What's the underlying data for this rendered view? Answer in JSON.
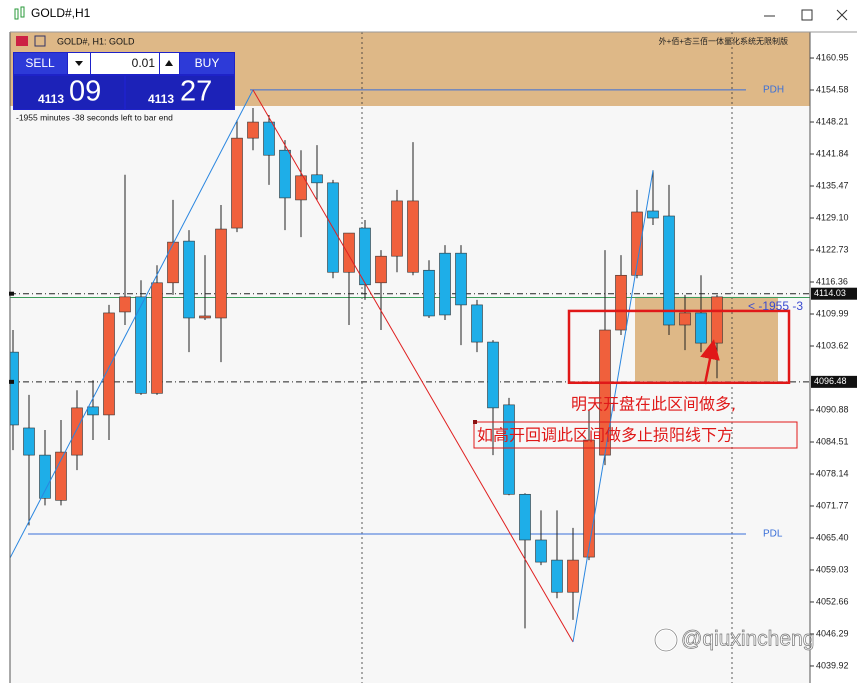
{
  "window": {
    "title": "GOLD#,H1"
  },
  "chart_header": {
    "symbol": "GOLD#, H1:  GOLD",
    "indicator": "外+佰+杏三佰一体量化系统无限制版"
  },
  "trade_panel": {
    "sell": "SELL",
    "buy": "BUY",
    "volume": "0.01",
    "bid_big": "4113",
    "bid_small": "09",
    "ask_big": "4113",
    "ask_small": "27"
  },
  "timer": "-1955 minutes -38 seconds left to bar end",
  "watermark": "@qiuxincheng",
  "chart_data": {
    "type": "candlestick",
    "ylim": [
      4036.53,
      4166.13
    ],
    "yticks": [
      4160.95,
      4154.58,
      4148.21,
      4141.84,
      4135.47,
      {
        "value": 4129.1,
        "label": "4129.10"
      },
      4122.73,
      4116.36,
      4109.99,
      4103.62,
      4090.88,
      4084.51,
      4078.14,
      4071.77,
      {
        "value": 4065.4,
        "label": "4065.40"
      },
      4059.03,
      4052.66,
      4046.29,
      4039.92
    ],
    "up_color": "#f0603c",
    "down_color": "#1eaee8",
    "open": [
      4102.4,
      4087.3,
      4081.9,
      4072.9,
      4081.9,
      4091.5,
      4089.9,
      4110.4,
      4113.4,
      4094.2,
      4116.2,
      4124.5,
      4109.2,
      4109.2,
      4127.1,
      4145,
      4148.2,
      4142.6,
      4132.7,
      4137.7,
      4136.1,
      4118.3,
      4127.1,
      4116.2,
      4121.5,
      4118.3,
      4118.7,
      4122.1,
      4122.1,
      4111.8,
      4104.4,
      4091.9,
      4074.1,
      4065,
      4061,
      4054.6,
      4061.6,
      4081.9,
      4106.8,
      4117.7,
      4130.5,
      4129.5,
      4107.8,
      4110.2,
      4104.2
    ],
    "high": [
      4106.8,
      4093.9,
      4086.9,
      4088.9,
      4094.8,
      4096.8,
      4111.8,
      4137.7,
      4116.7,
      4119.7,
      4132.7,
      4126.7,
      4121.7,
      4131.7,
      4148.6,
      4151,
      4149.6,
      4144.6,
      4142.6,
      4143.6,
      4136.7,
      4126.1,
      4128.7,
      4122.7,
      4134.7,
      4144.2,
      4120.7,
      4123.7,
      4123.7,
      4112.8,
      4104.8,
      4093.3,
      4074.3,
      4070.9,
      4070.9,
      4067.4,
      4090.9,
      4122.7,
      4121.7,
      4134.7,
      4138.6,
      4135.7,
      4113.8,
      4117.7,
      4113.8
    ],
    "low": [
      4082.9,
      4067.9,
      4071.9,
      4071.9,
      4078.9,
      4084.9,
      4084.9,
      4107.8,
      4093.9,
      4093.9,
      4113.8,
      4102.4,
      4108.8,
      4100.4,
      4126.3,
      4142.6,
      4135.7,
      4126.7,
      4125.3,
      4132.7,
      4117.1,
      4107.8,
      4112.8,
      4106.8,
      4118.3,
      4117.7,
      4109.2,
      4108.8,
      4103.8,
      4102.4,
      4081.9,
      4073.9,
      4047.4,
      4060,
      4053.4,
      4049.1,
      4061,
      4079.9,
      4105.8,
      4117.1,
      4127.7,
      4105.8,
      4102.8,
      4102.4,
      4097.2
    ],
    "close": [
      4087.9,
      4081.9,
      4073.3,
      4082.5,
      4091.3,
      4089.9,
      4110.2,
      4113.4,
      4094.2,
      4116.2,
      4124.3,
      4109.2,
      4109.6,
      4126.9,
      4145,
      4148.2,
      4141.6,
      4133.1,
      4137.5,
      4136.1,
      4118.3,
      4126.1,
      4115.8,
      4121.5,
      4132.5,
      4132.5,
      4109.6,
      4109.8,
      4111.8,
      4104.4,
      4091.3,
      4074.1,
      4065,
      4060.6,
      4054.6,
      4061,
      4084.9,
      4106.8,
      4117.7,
      4130.3,
      4129.1,
      4107.8,
      4110.2,
      4104.2,
      4113.4
    ],
    "zigzag": {
      "x": [
        0,
        15,
        35,
        40
      ],
      "values": [
        4061.4,
        4154.6,
        4044.7,
        4138.6
      ],
      "up_color": "#2a86e0",
      "down_color": "#e02020"
    },
    "levels": [
      {
        "name": "PDH",
        "value": 4154.6,
        "color": "#3a6fd8"
      },
      {
        "name": "PDL",
        "value": 4066.2,
        "color": "#3a6fd8"
      }
    ],
    "ask_line": {
      "value": 4113.27,
      "color": "#3c9a5a"
    },
    "price_labels": [
      4114.03,
      4096.48
    ],
    "band": {
      "bottom": 4151.4,
      "color": "#deb887"
    },
    "zone": {
      "top": 4113.4,
      "bottom": 4096.6,
      "color": "#deb887"
    },
    "box": {
      "top": 4110.6,
      "bottom": 4096.3,
      "color": "#e01818"
    },
    "countdown_label": "< -1955 -3",
    "annotations": [
      "明天开盘在此区间做多,",
      "如高开回调此区间做多止损阳线下方"
    ]
  }
}
